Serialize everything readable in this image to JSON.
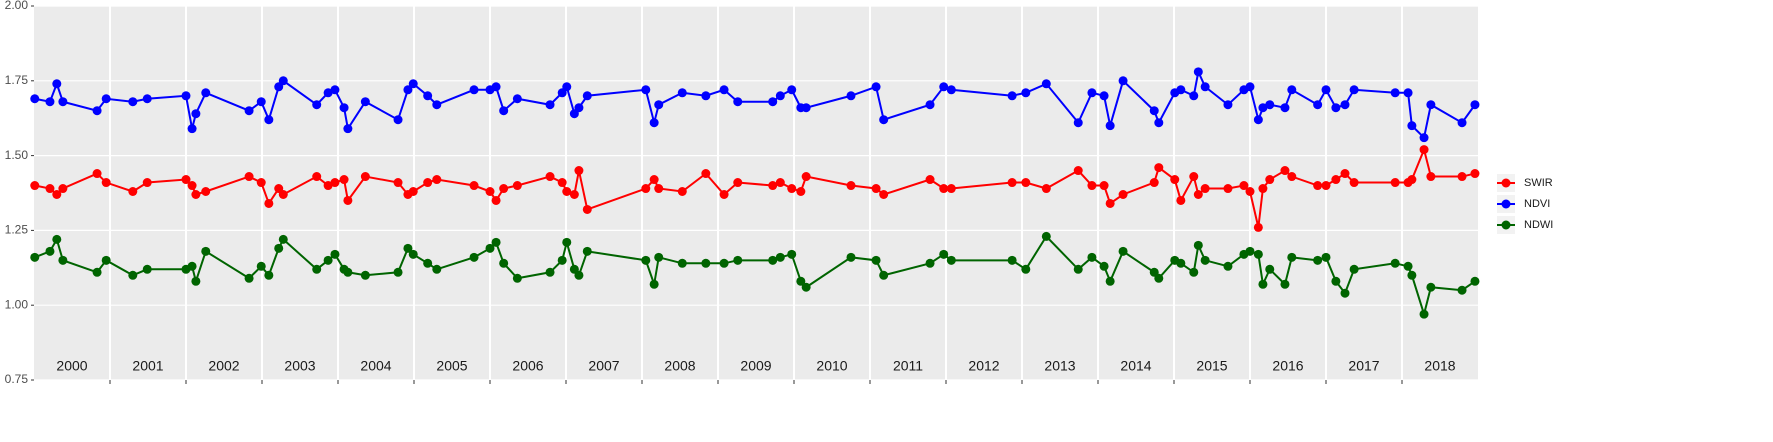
{
  "chart_data": {
    "type": "line",
    "x": [
      2000.01,
      2000.21,
      2000.3,
      2000.38,
      2000.83,
      2000.95,
      2001.3,
      2001.49,
      2002.0,
      2002.08,
      2002.13,
      2002.26,
      2002.83,
      2002.99,
      2003.09,
      2003.22,
      2003.28,
      2003.72,
      2003.87,
      2003.96,
      2004.08,
      2004.13,
      2004.36,
      2004.79,
      2004.92,
      2004.99,
      2005.18,
      2005.3,
      2005.79,
      2006.0,
      2006.08,
      2006.18,
      2006.36,
      2006.79,
      2006.95,
      2007.01,
      2007.11,
      2007.17,
      2007.28,
      2008.05,
      2008.16,
      2008.22,
      2008.53,
      2008.84,
      2009.08,
      2009.26,
      2009.72,
      2009.82,
      2009.97,
      2010.09,
      2010.16,
      2010.75,
      2011.08,
      2011.18,
      2011.79,
      2011.97,
      2012.07,
      2012.87,
      2013.05,
      2013.32,
      2013.74,
      2013.92,
      2014.08,
      2014.16,
      2014.33,
      2014.74,
      2014.8,
      2015.01,
      2015.09,
      2015.26,
      2015.32,
      2015.41,
      2015.71,
      2015.92,
      2016.0,
      2016.11,
      2016.17,
      2016.26,
      2016.46,
      2016.55,
      2016.89,
      2017.0,
      2017.13,
      2017.25,
      2017.37,
      2017.91,
      2018.08,
      2018.13,
      2018.29,
      2018.38,
      2018.79,
      2018.96
    ],
    "series": [
      {
        "name": "SWIR",
        "color": "#ff0000",
        "values": [
          1.4,
          1.39,
          1.37,
          1.39,
          1.44,
          1.41,
          1.38,
          1.41,
          1.42,
          1.4,
          1.37,
          1.38,
          1.43,
          1.41,
          1.34,
          1.39,
          1.37,
          1.43,
          1.4,
          1.41,
          1.42,
          1.35,
          1.43,
          1.41,
          1.37,
          1.38,
          1.41,
          1.42,
          1.4,
          1.38,
          1.35,
          1.39,
          1.4,
          1.43,
          1.41,
          1.38,
          1.37,
          1.45,
          1.32,
          1.39,
          1.42,
          1.39,
          1.38,
          1.44,
          1.37,
          1.41,
          1.4,
          1.41,
          1.39,
          1.38,
          1.43,
          1.4,
          1.39,
          1.37,
          1.42,
          1.39,
          1.39,
          1.41,
          1.41,
          1.39,
          1.45,
          1.4,
          1.4,
          1.34,
          1.37,
          1.41,
          1.46,
          1.42,
          1.35,
          1.43,
          1.37,
          1.39,
          1.39,
          1.4,
          1.38,
          1.26,
          1.39,
          1.42,
          1.45,
          1.43,
          1.4,
          1.4,
          1.42,
          1.44,
          1.41,
          1.41,
          1.41,
          1.42,
          1.52,
          1.43,
          1.43,
          1.44
        ]
      },
      {
        "name": "NDVI",
        "color": "#0000ff",
        "values": [
          1.69,
          1.68,
          1.74,
          1.68,
          1.65,
          1.69,
          1.68,
          1.69,
          1.7,
          1.59,
          1.64,
          1.71,
          1.65,
          1.68,
          1.62,
          1.73,
          1.75,
          1.67,
          1.71,
          1.72,
          1.66,
          1.59,
          1.68,
          1.62,
          1.72,
          1.74,
          1.7,
          1.67,
          1.72,
          1.72,
          1.73,
          1.65,
          1.69,
          1.67,
          1.71,
          1.73,
          1.64,
          1.66,
          1.7,
          1.72,
          1.61,
          1.67,
          1.71,
          1.7,
          1.72,
          1.68,
          1.68,
          1.7,
          1.72,
          1.66,
          1.66,
          1.7,
          1.73,
          1.62,
          1.67,
          1.73,
          1.72,
          1.7,
          1.71,
          1.74,
          1.61,
          1.71,
          1.7,
          1.6,
          1.75,
          1.65,
          1.61,
          1.71,
          1.72,
          1.7,
          1.78,
          1.73,
          1.67,
          1.72,
          1.73,
          1.62,
          1.66,
          1.67,
          1.66,
          1.72,
          1.67,
          1.72,
          1.66,
          1.67,
          1.72,
          1.71,
          1.71,
          1.6,
          1.56,
          1.67,
          1.61,
          1.67
        ]
      },
      {
        "name": "NDWI",
        "color": "#006400",
        "values": [
          1.16,
          1.18,
          1.22,
          1.15,
          1.11,
          1.15,
          1.1,
          1.12,
          1.12,
          1.13,
          1.08,
          1.18,
          1.09,
          1.13,
          1.1,
          1.19,
          1.22,
          1.12,
          1.15,
          1.17,
          1.12,
          1.11,
          1.1,
          1.11,
          1.19,
          1.17,
          1.14,
          1.12,
          1.16,
          1.19,
          1.21,
          1.14,
          1.09,
          1.11,
          1.15,
          1.21,
          1.12,
          1.1,
          1.18,
          1.15,
          1.07,
          1.16,
          1.14,
          1.14,
          1.14,
          1.15,
          1.15,
          1.16,
          1.17,
          1.08,
          1.06,
          1.16,
          1.15,
          1.1,
          1.14,
          1.17,
          1.15,
          1.15,
          1.12,
          1.23,
          1.12,
          1.16,
          1.13,
          1.08,
          1.18,
          1.11,
          1.09,
          1.15,
          1.14,
          1.11,
          1.2,
          1.15,
          1.13,
          1.17,
          1.18,
          1.17,
          1.07,
          1.12,
          1.07,
          1.16,
          1.15,
          1.16,
          1.08,
          1.04,
          1.12,
          1.14,
          1.13,
          1.1,
          0.97,
          1.06,
          1.05,
          1.08
        ]
      }
    ],
    "xlim": [
      2000,
      2019
    ],
    "xticks": [
      2001,
      2002,
      2003,
      2004,
      2005,
      2006,
      2007,
      2008,
      2009,
      2010,
      2011,
      2012,
      2013,
      2014,
      2015,
      2016,
      2017,
      2018
    ],
    "year_labels": [
      "2000",
      "2001",
      "2002",
      "2003",
      "2004",
      "2005",
      "2006",
      "2007",
      "2008",
      "2009",
      "2010",
      "2011",
      "2012",
      "2013",
      "2014",
      "2015",
      "2016",
      "2017",
      "2018"
    ],
    "ylim": [
      0.75,
      2.0
    ],
    "yticks": [
      0.75,
      {
        "value": 1,
        "label": "1.00"
      },
      1.25,
      {
        "value": 1.5,
        "label": "1.50"
      },
      1.75,
      {
        "value": 2,
        "label": "2.00"
      }
    ],
    "grid": true,
    "legend": "right"
  }
}
